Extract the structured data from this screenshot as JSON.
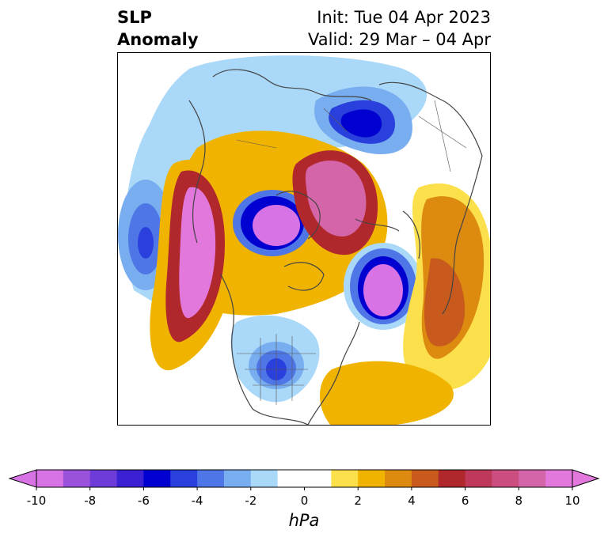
{
  "title": {
    "left_line1": "SLP",
    "left_line2": "Anomaly",
    "right_line1": "Init: Tue 04 Apr 2023",
    "right_line2": "Valid: 29 Mar – 04 Apr"
  },
  "map": {
    "projection": "polar stereographic (north pole)",
    "field": "sea level pressure anomaly"
  },
  "colorbar": {
    "label": "hPa",
    "ticks": [
      "-10",
      "-8",
      "-6",
      "-4",
      "-2",
      "0",
      "2",
      "4",
      "6",
      "8",
      "10"
    ],
    "colors": [
      "#d873e6",
      "#9a52dc",
      "#6e3cd8",
      "#3a22d4",
      "#0000d0",
      "#2a40dc",
      "#4f76e6",
      "#78aef0",
      "#a9d8f8",
      "#ffffff",
      "#ffffff",
      "#fbe04c",
      "#f0b400",
      "#dc8a10",
      "#c75a1c",
      "#b0282c",
      "#bf3a5a",
      "#cc4e80",
      "#d465a8",
      "#e278dc"
    ],
    "extend": "both"
  }
}
